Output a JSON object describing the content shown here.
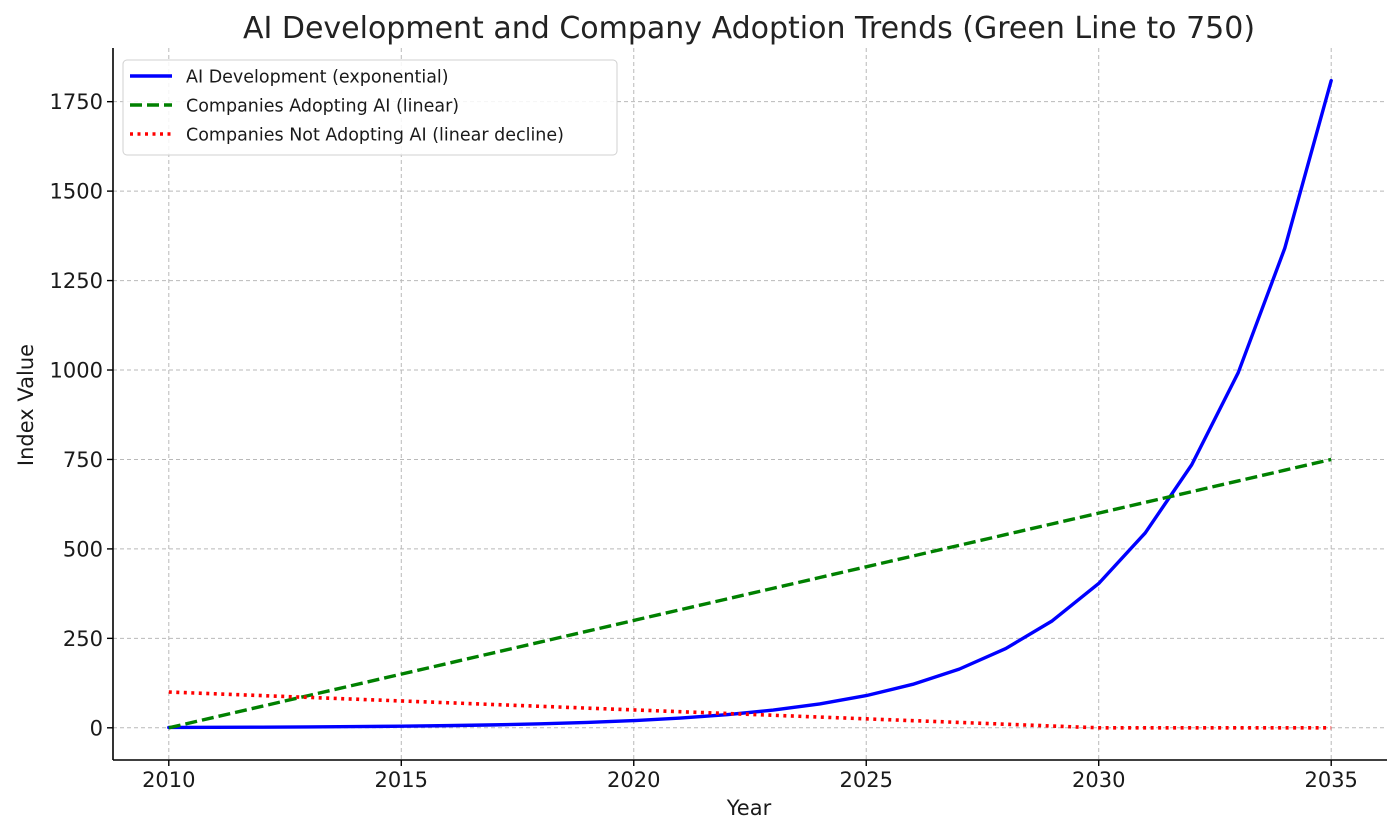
{
  "chart_data": {
    "type": "line",
    "title": "AI Development and Company Adoption Trends (Green Line to 750)",
    "xlabel": "Year",
    "ylabel": "Index Value",
    "x": [
      2010,
      2011,
      2012,
      2013,
      2014,
      2015,
      2016,
      2017,
      2018,
      2019,
      2020,
      2021,
      2022,
      2023,
      2024,
      2025,
      2026,
      2027,
      2028,
      2029,
      2030,
      2031,
      2032,
      2033,
      2034,
      2035
    ],
    "xlim": [
      2008.8,
      2036.2
    ],
    "ylim": [
      -90,
      1900
    ],
    "xticks": [
      2010,
      2015,
      2020,
      2025,
      2030,
      2035
    ],
    "yticks": [
      0,
      250,
      500,
      750,
      1000,
      1250,
      1500,
      1750
    ],
    "grid": true,
    "legend_position": "top-left",
    "series": [
      {
        "name": "AI Development (exponential)",
        "color": "#0000ff",
        "style": "solid",
        "values": [
          1,
          1.35,
          1.82,
          2.46,
          3.32,
          4.48,
          6.05,
          8.17,
          11.0,
          14.9,
          20.1,
          27.1,
          36.6,
          49.4,
          66.7,
          90.0,
          121.5,
          164.0,
          221.4,
          298.9,
          403.4,
          544.6,
          735.2,
          992.5,
          1339.9,
          1808.9
        ]
      },
      {
        "name": "Companies Adopting AI (linear)",
        "color": "#008000",
        "style": "dashed",
        "values": [
          0,
          30,
          60,
          90,
          120,
          150,
          180,
          210,
          240,
          270,
          300,
          330,
          360,
          390,
          420,
          450,
          480,
          510,
          540,
          570,
          600,
          630,
          660,
          690,
          720,
          750
        ]
      },
      {
        "name": "Companies Not Adopting AI (linear decline)",
        "color": "#ff0000",
        "style": "dotted",
        "values": [
          100,
          95,
          90,
          85,
          80,
          75,
          70,
          65,
          60,
          55,
          50,
          45,
          40,
          35,
          30,
          25,
          20,
          15,
          10,
          5,
          0,
          0,
          0,
          0,
          0,
          0
        ]
      }
    ]
  }
}
